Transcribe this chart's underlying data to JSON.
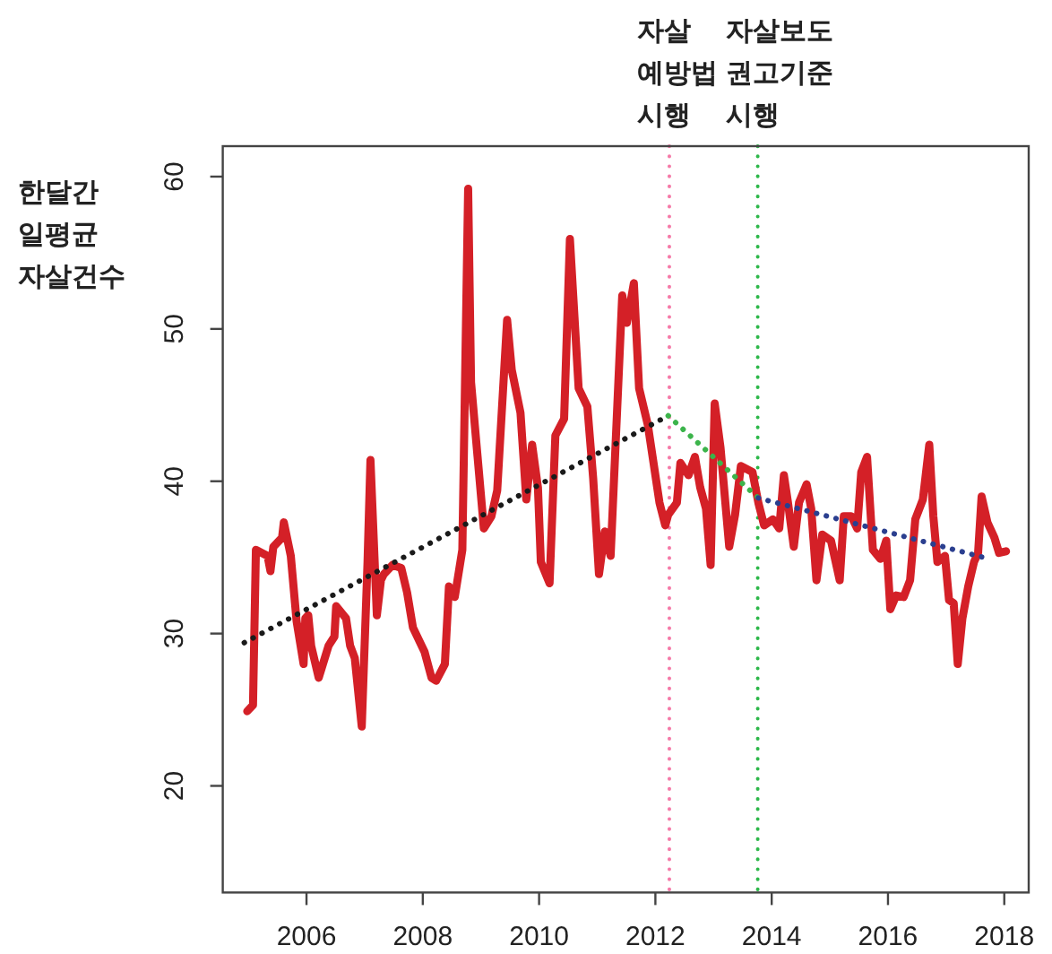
{
  "chart_data": {
    "type": "line",
    "ylabel": "한달간\n일평균\n자살건수",
    "xlim": [
      2004.56,
      2018.42
    ],
    "ylim": [
      13.0,
      62.0
    ],
    "xticks": [
      2006,
      2008,
      2010,
      2012,
      2014,
      2016,
      2018
    ],
    "yticks": [
      20,
      30,
      40,
      50,
      60
    ],
    "grid": false,
    "ref_lines": [
      {
        "axis": "x",
        "value": 2012.24,
        "label": "자살\n예방법\n시행",
        "color": "#f57aa8",
        "line_style": "dotted"
      },
      {
        "axis": "x",
        "value": 2013.76,
        "label": "자살보도\n권고기준\n시행",
        "color": "#2db84a",
        "line_style": "dotted"
      }
    ],
    "series": [
      {
        "type": "line",
        "color": "#d42027",
        "line_style": "solid",
        "x": [
          2004.98,
          2005.08,
          2005.13,
          2005.33,
          2005.38,
          2005.43,
          2005.58,
          2005.61,
          2005.73,
          2005.83,
          2005.95,
          2005.98,
          2006.03,
          2006.08,
          2006.21,
          2006.38,
          2006.48,
          2006.51,
          2006.68,
          2006.75,
          2006.83,
          2006.95,
          2007.05,
          2007.1,
          2007.21,
          2007.28,
          2007.33,
          2007.48,
          2007.63,
          2007.73,
          2007.83,
          2008.03,
          2008.15,
          2008.23,
          2008.38,
          2008.45,
          2008.55,
          2008.68,
          2008.78,
          2008.83,
          2009.05,
          2009.18,
          2009.28,
          2009.45,
          2009.53,
          2009.68,
          2009.78,
          2009.88,
          2009.98,
          2010.03,
          2010.18,
          2010.28,
          2010.43,
          2010.53,
          2010.68,
          2010.83,
          2010.93,
          2011.03,
          2011.13,
          2011.23,
          2011.43,
          2011.51,
          2011.63,
          2011.72,
          2011.87,
          2012.07,
          2012.17,
          2012.22,
          2012.37,
          2012.43,
          2012.57,
          2012.68,
          2012.77,
          2012.87,
          2012.95,
          2013.02,
          2013.12,
          2013.27,
          2013.37,
          2013.47,
          2013.67,
          2013.77,
          2013.87,
          2014.02,
          2014.13,
          2014.21,
          2014.28,
          2014.38,
          2014.47,
          2014.6,
          2014.68,
          2014.77,
          2014.87,
          2015.02,
          2015.17,
          2015.24,
          2015.37,
          2015.47,
          2015.54,
          2015.64,
          2015.74,
          2015.87,
          2015.97,
          2016.04,
          2016.14,
          2016.27,
          2016.38,
          2016.47,
          2016.6,
          2016.71,
          2016.78,
          2016.85,
          2016.98,
          2017.05,
          2017.13,
          2017.2,
          2017.28,
          2017.38,
          2017.48,
          2017.55,
          2017.61,
          2017.71,
          2017.83,
          2017.91,
          2018.03
        ],
        "values": [
          24.9,
          25.3,
          35.5,
          35.1,
          34.1,
          35.7,
          36.3,
          37.3,
          35.1,
          30.8,
          28.0,
          31.0,
          31.2,
          29.2,
          27.1,
          29.2,
          29.8,
          31.8,
          31.0,
          29.2,
          28.4,
          23.9,
          34.7,
          41.4,
          31.2,
          33.5,
          33.9,
          34.5,
          34.3,
          32.7,
          30.4,
          28.8,
          27.1,
          26.9,
          28.0,
          33.1,
          32.4,
          35.5,
          59.2,
          46.5,
          36.9,
          37.7,
          39.4,
          50.6,
          47.3,
          44.5,
          38.8,
          42.4,
          39.6,
          34.7,
          33.3,
          43.0,
          44.1,
          55.9,
          46.1,
          44.9,
          40.2,
          33.9,
          36.7,
          35.1,
          52.2,
          50.4,
          53.0,
          46.1,
          43.7,
          38.6,
          37.1,
          37.8,
          38.6,
          41.2,
          40.4,
          41.6,
          39.6,
          38.2,
          34.5,
          45.1,
          42.2,
          35.7,
          37.8,
          41.0,
          40.6,
          38.6,
          37.1,
          37.5,
          36.9,
          40.4,
          38.6,
          35.7,
          38.6,
          39.8,
          38.2,
          33.5,
          36.5,
          36.1,
          33.5,
          37.7,
          37.7,
          36.9,
          40.6,
          41.6,
          35.5,
          34.9,
          36.1,
          31.6,
          32.5,
          32.4,
          33.5,
          37.5,
          38.8,
          42.4,
          37.7,
          34.7,
          35.1,
          32.2,
          32.0,
          28.0,
          31.0,
          33.1,
          34.7,
          35.3,
          39.0,
          37.3,
          36.3,
          35.3,
          35.4
        ]
      },
      {
        "type": "line",
        "color": "#1a1a1a",
        "line_style": "dotted",
        "x": [
          2004.93,
          2012.22
        ],
        "values": [
          29.4,
          44.3
        ]
      },
      {
        "type": "line",
        "color": "#3cb44b",
        "line_style": "dotted",
        "x": [
          2012.22,
          2013.77
        ],
        "values": [
          44.3,
          38.9
        ]
      },
      {
        "type": "line",
        "color": "#2b3f8f",
        "line_style": "dotted",
        "x": [
          2013.77,
          2017.74
        ],
        "values": [
          38.9,
          34.9
        ]
      }
    ]
  }
}
